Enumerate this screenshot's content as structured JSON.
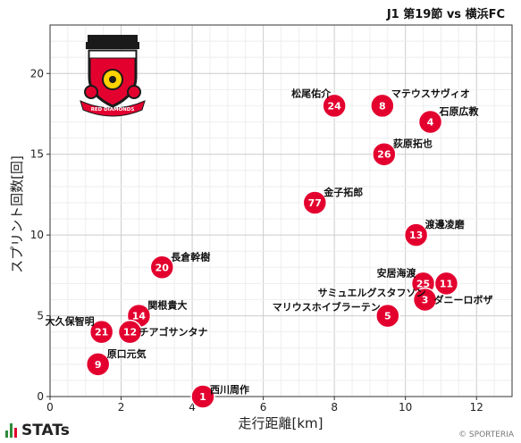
{
  "header": {
    "match_title": "J1 第19節 vs 横浜FC"
  },
  "brand": {
    "name": "STATs"
  },
  "footer": {
    "copyright": "© SPORTERIA"
  },
  "crest": {
    "text": "RED DIAMONDS",
    "icon": "urawa-crest-icon"
  },
  "colors": {
    "marker": "#e3002f",
    "marker_text": "#ffffff",
    "grid": "#dddddd",
    "brand_green": "#2e8b3a",
    "brand_red": "#e3002f"
  },
  "chart_data": {
    "type": "scatter",
    "title": "J1 第19節 vs 横浜FC",
    "xlabel": "走行距離[km]",
    "ylabel": "スプリント回数[回]",
    "xlim": [
      0,
      13
    ],
    "ylim": [
      0,
      23
    ],
    "xticks": [
      0,
      2,
      4,
      6,
      8,
      10,
      12
    ],
    "yticks": [
      0,
      5,
      10,
      15,
      20
    ],
    "grid": true,
    "points": [
      {
        "number": "24",
        "name": "松尾佑介",
        "x": 8.0,
        "y": 18
      },
      {
        "number": "8",
        "name": "マテウスサヴィオ",
        "x": 9.35,
        "y": 18
      },
      {
        "number": "4",
        "name": "石原広教",
        "x": 10.7,
        "y": 17
      },
      {
        "number": "26",
        "name": "荻原拓也",
        "x": 9.4,
        "y": 15
      },
      {
        "number": "77",
        "name": "金子拓郎",
        "x": 7.45,
        "y": 12
      },
      {
        "number": "13",
        "name": "渡邊凌磨",
        "x": 10.3,
        "y": 10
      },
      {
        "number": "20",
        "name": "長倉幹樹",
        "x": 3.15,
        "y": 8
      },
      {
        "number": "25",
        "name": "安居海渡",
        "x": 10.5,
        "y": 7
      },
      {
        "number": "11",
        "name": "サミュエルグスタフソン",
        "x": 11.15,
        "y": 7
      },
      {
        "number": "3",
        "name": "ダニーロボザ",
        "x": 10.55,
        "y": 6
      },
      {
        "number": "5",
        "name": "マリウスホイブラーテン",
        "x": 9.5,
        "y": 5
      },
      {
        "number": "14",
        "name": "関根貴大",
        "x": 2.5,
        "y": 5
      },
      {
        "number": "21",
        "name": "大久保智明",
        "x": 1.45,
        "y": 4
      },
      {
        "number": "12",
        "name": "チアゴサンタナ",
        "x": 2.25,
        "y": 4
      },
      {
        "number": "9",
        "name": "原口元気",
        "x": 1.35,
        "y": 2
      },
      {
        "number": "1",
        "name": "西川周作",
        "x": 4.3,
        "y": 0
      }
    ]
  }
}
